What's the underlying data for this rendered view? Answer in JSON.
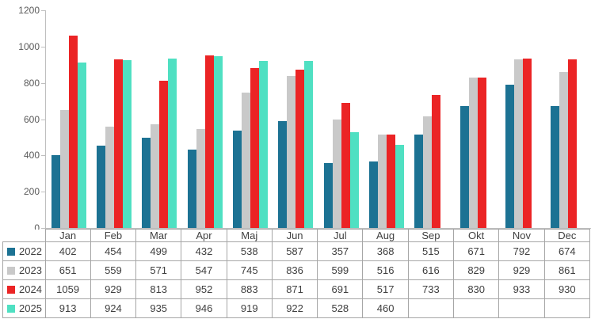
{
  "chart_data": {
    "type": "bar",
    "title": "",
    "xlabel": "",
    "ylabel": "",
    "categories": [
      "Jan",
      "Feb",
      "Mar",
      "Apr",
      "Maj",
      "Jun",
      "Jul",
      "Aug",
      "Sep",
      "Okt",
      "Nov",
      "Dec"
    ],
    "series": [
      {
        "name": "2022",
        "color": "#1C7293",
        "values": [
          402,
          454,
          499,
          432,
          538,
          587,
          357,
          368,
          515,
          671,
          792,
          674
        ]
      },
      {
        "name": "2023",
        "color": "#C9C9C9",
        "values": [
          651,
          559,
          571,
          547,
          745,
          836,
          599,
          516,
          616,
          829,
          929,
          861
        ]
      },
      {
        "name": "2024",
        "color": "#EB2425",
        "values": [
          1059,
          929,
          813,
          952,
          883,
          871,
          691,
          517,
          733,
          830,
          933,
          930
        ]
      },
      {
        "name": "2025",
        "color": "#4FE0C2",
        "values": [
          913,
          924,
          935,
          946,
          919,
          922,
          528,
          460,
          null,
          null,
          null,
          null
        ]
      }
    ],
    "ylim": [
      0,
      1200
    ],
    "yticks": [
      0,
      200,
      400,
      600,
      800,
      1000,
      1200
    ],
    "grid": false,
    "legend_position": "table-left-column"
  },
  "colors": {
    "axis_line": "#BFBFBF",
    "axis_label_text": "#595959",
    "table_border": "#A6A6A6",
    "table_text": "#404040",
    "background": "#ffffff"
  }
}
